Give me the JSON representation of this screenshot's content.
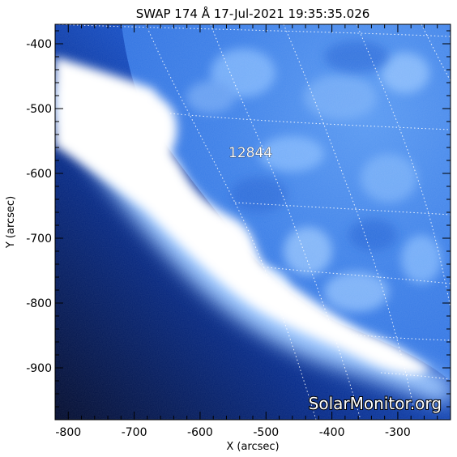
{
  "title": "SWAP 174 Å 17-Jul-2021 19:35:35.026",
  "axes": {
    "x_label": "X (arcsec)",
    "y_label": "Y (arcsec)",
    "x_ticks": [
      "-800",
      "-700",
      "-600",
      "-500",
      "-400",
      "-300"
    ],
    "y_ticks": [
      "-400",
      "-500",
      "-600",
      "-700",
      "-800",
      "-900"
    ],
    "x_tick_values": [
      -800,
      -700,
      -600,
      -500,
      -400,
      -300
    ],
    "y_tick_values": [
      -400,
      -500,
      -600,
      -700,
      -800,
      -900
    ],
    "xlim": [
      -820,
      -220
    ],
    "ylim": [
      -980,
      -370
    ]
  },
  "active_region": {
    "label": "12844",
    "x": -520,
    "y": -574
  },
  "watermark": "SolarMonitor.org",
  "colors": {
    "sky_dark": "#021040",
    "disk_mid": "#3b7fe6",
    "disk_light": "#8fbdf5",
    "limb_bright": "#ffffff"
  }
}
